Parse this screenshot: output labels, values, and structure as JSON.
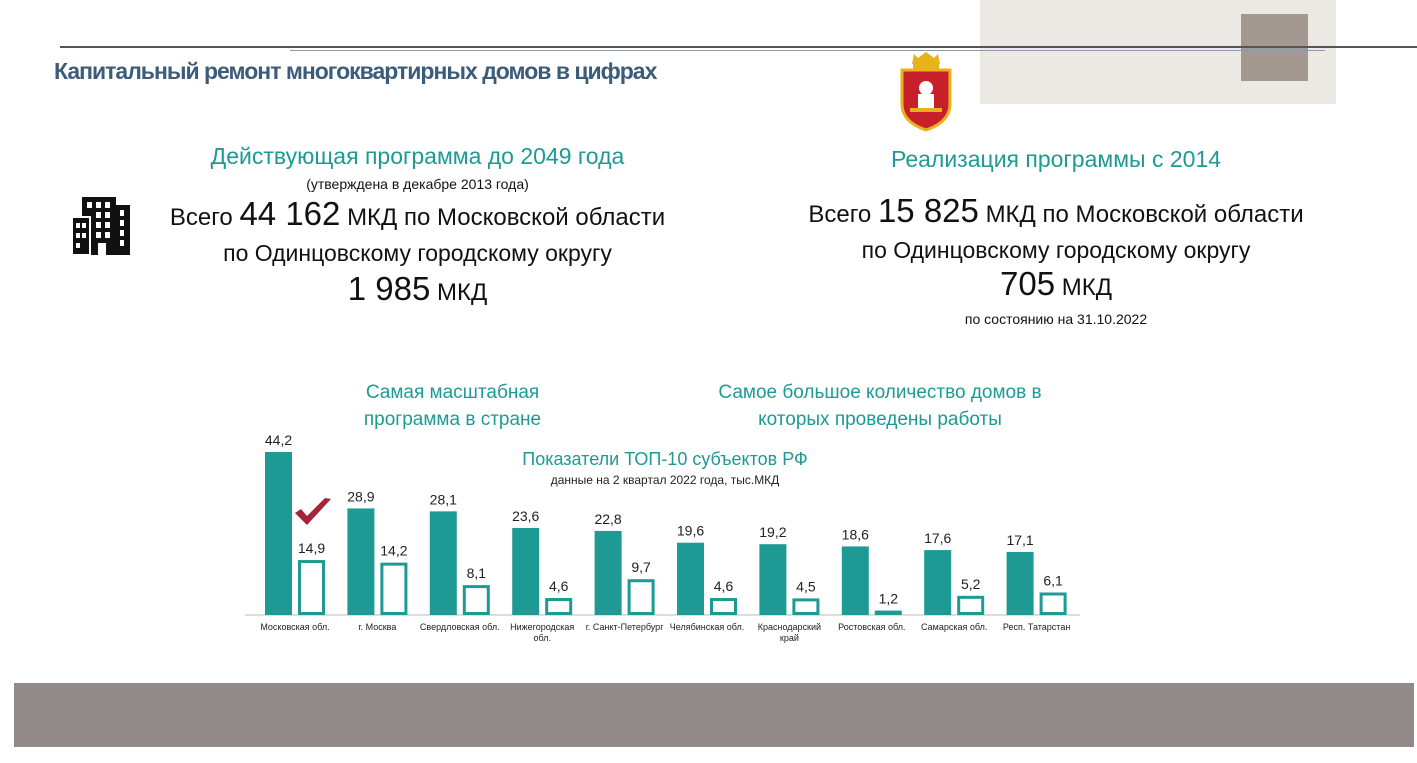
{
  "page": {
    "title": "Капитальный ремонт многоквартирных домов в цифрах"
  },
  "left_block": {
    "heading": "Действующая программа до 2049 года",
    "subheading": "(утверждена в декабре 2013 года)",
    "line1_prefix": "Всего",
    "line1_number": "44 162",
    "line1_suffix": "МКД по Московской области",
    "line2": "по Одинцовскому городскому округу",
    "line3_number": "1 985",
    "line3_suffix": "МКД"
  },
  "right_block": {
    "heading": "Реализация программы с 2014",
    "line1_prefix": "Всего",
    "line1_number": "15 825",
    "line1_suffix": "МКД по Московской области",
    "line2": "по Одинцовскому городскому округу",
    "line3_number": "705",
    "line3_suffix": "МКД",
    "note": "по состоянию на 31.10.2022"
  },
  "captions": {
    "left": "Самая масштабная программа в стране",
    "right": "Самое большое количество домов в которых проведены работы"
  },
  "icons": {
    "building": "building-icon",
    "emblem": "moscow-oblast-coat-of-arms",
    "checkmark": "checkmark-icon"
  },
  "colors": {
    "teal": "#1d9a94",
    "title_blue": "#3d5c7a",
    "footer_gray": "#918a88",
    "check_red": "#a3253a"
  },
  "chart_data": {
    "type": "bar",
    "title": "Показатели ТОП-10 субъектов РФ",
    "subtitle": "данные на 2 квартал 2022 года, тыс.МКД",
    "categories": [
      [
        "Московская обл."
      ],
      [
        "г. Москва"
      ],
      [
        "Свердловская обл."
      ],
      [
        "Нижегородская",
        "обл."
      ],
      [
        "г. Санкт-Петербург"
      ],
      [
        "Челябинская обл."
      ],
      [
        "Краснодарский",
        "край"
      ],
      [
        "Ростовская обл."
      ],
      [
        "Самарская обл."
      ],
      [
        "Респ. Татарстан"
      ]
    ],
    "series": [
      {
        "style": "filled",
        "color": "#1d9a94",
        "values": [
          44.2,
          28.9,
          28.1,
          23.6,
          22.8,
          19.6,
          19.2,
          18.6,
          17.6,
          17.1
        ],
        "labels": [
          "44,2",
          "28,9",
          "28,1",
          "23,6",
          "22,8",
          "19,6",
          "19,2",
          "18,6",
          "17,6",
          "17,1"
        ]
      },
      {
        "style": "outline",
        "color": "#1d9a94",
        "values": [
          14.9,
          14.2,
          8.1,
          4.6,
          9.7,
          4.6,
          4.5,
          1.2,
          5.2,
          6.1
        ],
        "labels": [
          "14,9",
          "14,2",
          "8,1",
          "4,6",
          "9,7",
          "4,6",
          "4,5",
          "1,2",
          "5,2",
          "6,1"
        ]
      }
    ],
    "ylim": [
      0,
      44.2
    ],
    "grid": false,
    "legend": "none"
  }
}
